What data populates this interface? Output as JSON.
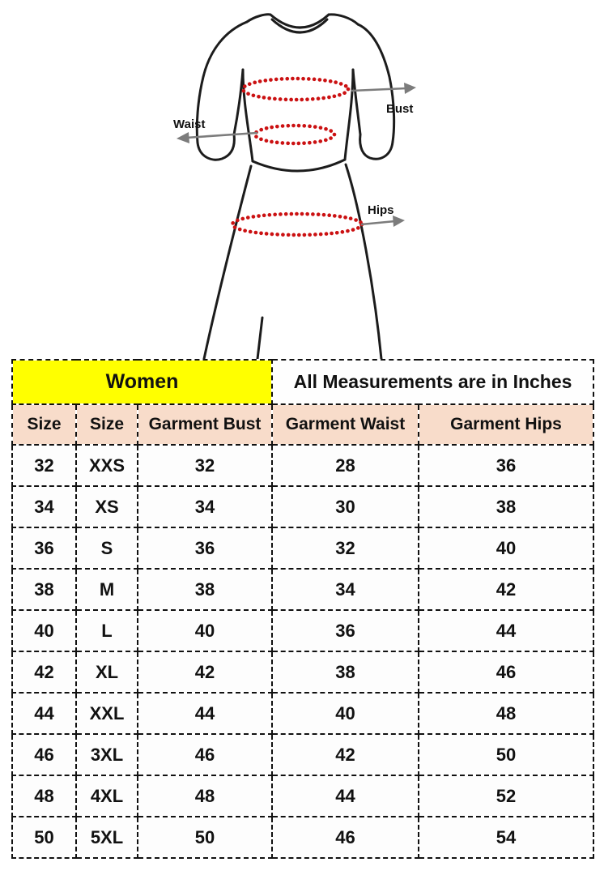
{
  "page": {
    "background": "#ffffff"
  },
  "diagram": {
    "labels": {
      "bust": "Bust",
      "waist": "Waist",
      "hips": "Hips"
    },
    "colors": {
      "outline": "#1c1c1c",
      "dots": "#cb1112",
      "arrow": "#7c7c7c",
      "label": "#111111"
    }
  },
  "table": {
    "title_group": "Women",
    "title_units": "All Measurements are in Inches",
    "columns": [
      "Size",
      "Size",
      "Garment Bust",
      "Garment Waist",
      "Garment Hips"
    ],
    "rows": [
      [
        "32",
        "XXS",
        "32",
        "28",
        "36"
      ],
      [
        "34",
        "XS",
        "34",
        "30",
        "38"
      ],
      [
        "36",
        "S",
        "36",
        "32",
        "40"
      ],
      [
        "38",
        "M",
        "38",
        "34",
        "42"
      ],
      [
        "40",
        "L",
        "40",
        "36",
        "44"
      ],
      [
        "42",
        "XL",
        "42",
        "38",
        "46"
      ],
      [
        "44",
        "XXL",
        "44",
        "40",
        "48"
      ],
      [
        "46",
        "3XL",
        "46",
        "42",
        "50"
      ],
      [
        "48",
        "4XL",
        "48",
        "44",
        "52"
      ],
      [
        "50",
        "5XL",
        "50",
        "46",
        "54"
      ]
    ],
    "colors": {
      "group_header_bg": "#ffff00",
      "units_header_bg": "#fefefe",
      "column_header_bg": "#f8dcca",
      "row_bg": "#fdfdfd",
      "border": "#111111",
      "text": "#111111"
    }
  },
  "chart_data": {
    "type": "table",
    "title": "Women — All Measurements are in Inches",
    "columns": [
      "Size",
      "Size",
      "Garment Bust",
      "Garment Waist",
      "Garment Hips"
    ],
    "rows": [
      [
        32,
        "XXS",
        32,
        28,
        36
      ],
      [
        34,
        "XS",
        34,
        30,
        38
      ],
      [
        36,
        "S",
        36,
        32,
        40
      ],
      [
        38,
        "M",
        38,
        34,
        42
      ],
      [
        40,
        "L",
        40,
        36,
        44
      ],
      [
        42,
        "XL",
        42,
        38,
        46
      ],
      [
        44,
        "XXL",
        44,
        40,
        48
      ],
      [
        46,
        "3XL",
        46,
        42,
        50
      ],
      [
        48,
        "4XL",
        48,
        44,
        52
      ],
      [
        50,
        "5XL",
        50,
        46,
        54
      ]
    ]
  }
}
